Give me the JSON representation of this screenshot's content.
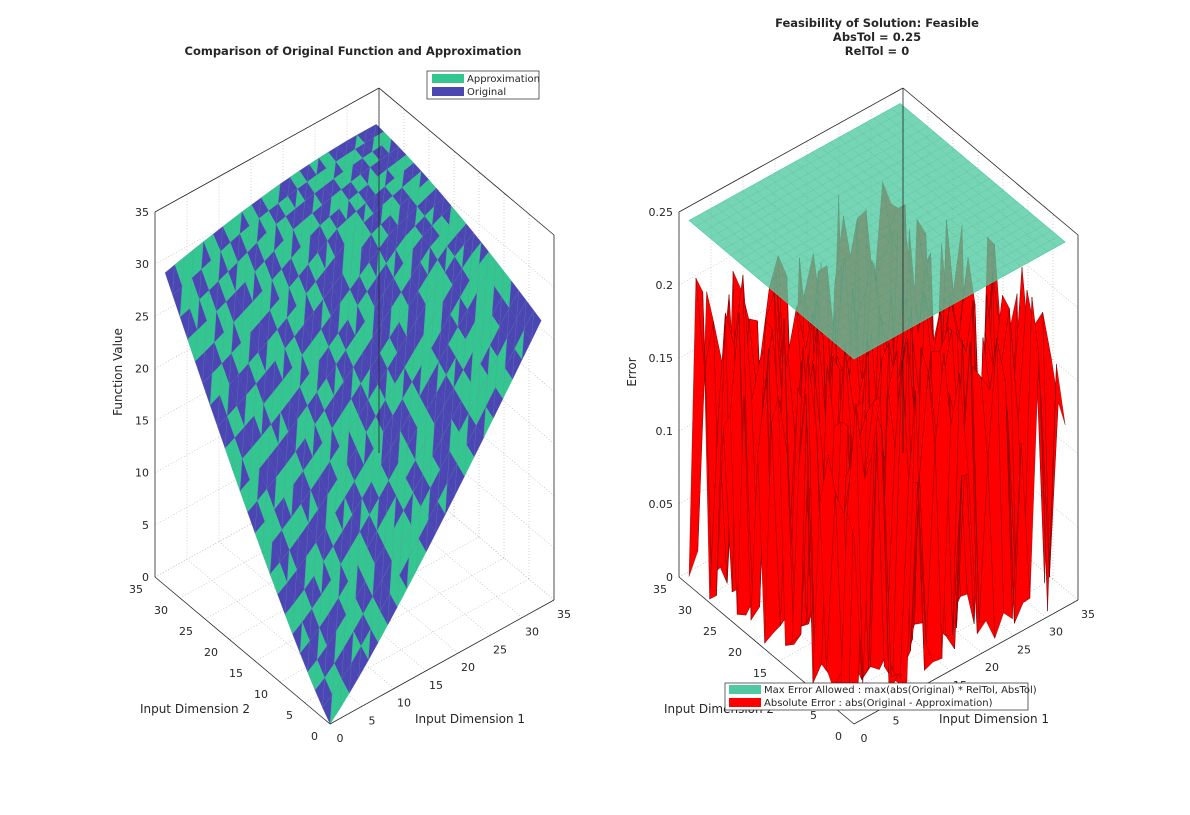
{
  "chart_data": [
    {
      "type": "surface",
      "title": "Comparison of Original Function and Approximation",
      "xlabel": "Input Dimension 1",
      "ylabel": "Input Dimension 2",
      "zlabel": "Function Value",
      "xlim": [
        0,
        35
      ],
      "ylim": [
        0,
        35
      ],
      "zlim": [
        0,
        35
      ],
      "x_ticks": [
        "0",
        "5",
        "10",
        "15",
        "20",
        "25",
        "30",
        "35"
      ],
      "y_ticks": [
        "0",
        "5",
        "10",
        "15",
        "20",
        "25",
        "30",
        "35"
      ],
      "z_ticks": [
        "0",
        "5",
        "10",
        "15",
        "20",
        "25",
        "30",
        "35"
      ],
      "grid": true,
      "legend_position": "top-right",
      "series": [
        {
          "name": "Approximation",
          "color": "#33c690"
        },
        {
          "name": "Original",
          "color": "#4b46b4"
        }
      ],
      "surface_corner_values": {
        "x0y0": 0,
        "x33y0": 25,
        "x0y33": 27.5,
        "x33y33": 33
      }
    },
    {
      "type": "surface",
      "title_lines": [
        "Feasibility of Solution: Feasible",
        "AbsTol = 0.25",
        "RelTol = 0"
      ],
      "xlabel": "Input Dimension 1",
      "ylabel": "Input Dimension 2",
      "zlabel": "Error",
      "xlim": [
        0,
        35
      ],
      "ylim": [
        0,
        35
      ],
      "zlim": [
        0,
        0.25
      ],
      "x_ticks": [
        "0",
        "5",
        "10",
        "15",
        "20",
        "25",
        "30",
        "35"
      ],
      "y_ticks": [
        "0",
        "5",
        "10",
        "15",
        "20",
        "25",
        "30",
        "35"
      ],
      "z_ticks": [
        "0",
        "0.05",
        "0.1",
        "0.15",
        "0.2",
        "0.25"
      ],
      "grid": true,
      "legend_position": "bottom",
      "series": [
        {
          "name": "Max Error Allowed : max(abs(Original) * RelTol, AbsTol)",
          "color": "#4fc9a0",
          "constant_value": 0.25
        },
        {
          "name": "Absolute Error : abs(Original - Approximation)",
          "color": "#ff0000",
          "range": [
            0,
            0.22
          ]
        }
      ]
    }
  ]
}
